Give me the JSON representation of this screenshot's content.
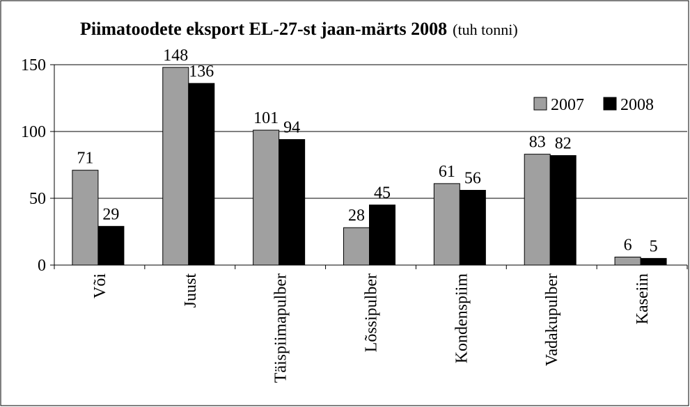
{
  "chart_data": {
    "type": "bar",
    "title": "Piimatoodete eksport EL-27-st jaan-märts 2008",
    "subtitle": "(tuh tonni)",
    "categories": [
      "Või",
      "Juust",
      "Täispiimapulber",
      "Lõssipulber",
      "Kondenspiim",
      "Vadakupulber",
      "Kaseiin"
    ],
    "series": [
      {
        "name": "2007",
        "color": "#a0a0a0",
        "values": [
          71,
          148,
          101,
          28,
          61,
          83,
          6
        ]
      },
      {
        "name": "2008",
        "color": "#000000",
        "values": [
          29,
          136,
          94,
          45,
          56,
          82,
          5
        ]
      }
    ],
    "ylim": [
      0,
      150
    ],
    "yticks": [
      0,
      50,
      100,
      150
    ],
    "grid": true,
    "legend": "upper right"
  }
}
